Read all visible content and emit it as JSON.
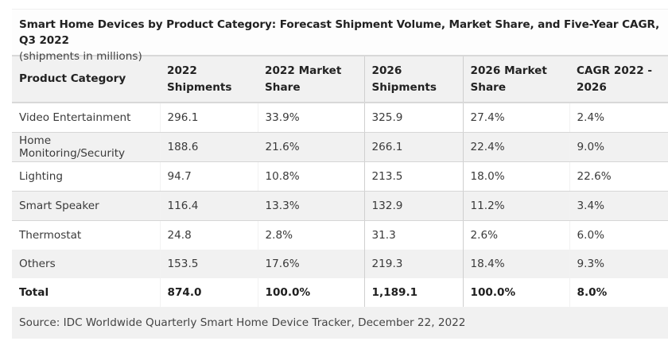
{
  "caption": {
    "title": "Smart Home Devices by Product Category: Forecast Shipment Volume, Market Share, and Five-Year CAGR, Q3 2022",
    "subtitle": "(shipments in millions)"
  },
  "table": {
    "headers": [
      "Product Category",
      "2022 Shipments",
      "2022 Market Share",
      "2026 Shipments",
      "2026 Market Share",
      "CAGR 2022 - 2026"
    ],
    "rows": [
      [
        "Video Entertainment",
        "296.1",
        "33.9%",
        "325.9",
        "27.4%",
        "2.4%"
      ],
      [
        "Home Monitoring/Security",
        "188.6",
        "21.6%",
        "266.1",
        "22.4%",
        "9.0%"
      ],
      [
        "Lighting",
        "94.7",
        "10.8%",
        "213.5",
        "18.0%",
        "22.6%"
      ],
      [
        "Smart Speaker",
        "116.4",
        "13.3%",
        "132.9",
        "11.2%",
        "3.4%"
      ],
      [
        "Thermostat",
        "24.8",
        "2.8%",
        "31.3",
        "2.6%",
        "6.0%"
      ],
      [
        "Others",
        "153.5",
        "17.6%",
        "219.3",
        "18.4%",
        "9.3%"
      ]
    ],
    "total": [
      "Total",
      "874.0",
      "100.0%",
      "1,189.1",
      "100.0%",
      "8.0%"
    ]
  },
  "source": "Source: IDC Worldwide Quarterly Smart Home Device Tracker, December 22, 2022"
}
